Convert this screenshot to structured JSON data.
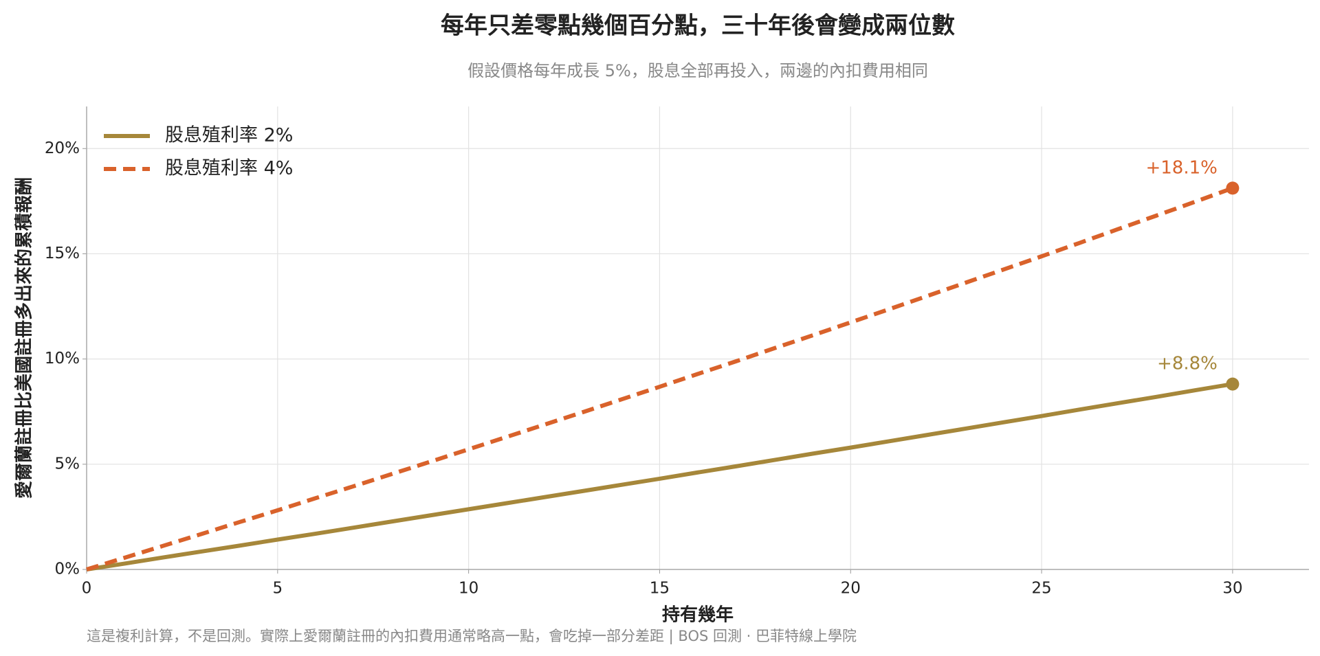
{
  "chart_data": {
    "type": "line",
    "title": "每年只差零點幾個百分點，三十年後會變成兩位數",
    "subtitle": "假設價格每年成長 5%，股息全部再投入，兩邊的內扣費用相同",
    "x_label": "持有幾年",
    "y_label": "愛爾蘭註冊比美國註冊多出來的累積報酬",
    "footer": "這是複利計算，不是回測。實際上愛爾蘭註冊的內扣費用通常略高一點，會吃掉一部分差距 | BOS 回測 · 巴菲特線上學院",
    "x": [
      0,
      1,
      2,
      3,
      4,
      5,
      6,
      7,
      8,
      9,
      10,
      11,
      12,
      13,
      14,
      15,
      16,
      17,
      18,
      19,
      20,
      21,
      22,
      23,
      24,
      25,
      26,
      27,
      28,
      29,
      30
    ],
    "series": [
      {
        "name": "股息殖利率 2%",
        "color": "#a6873a",
        "dash": false,
        "values": [
          0,
          0.28,
          0.57,
          0.85,
          1.13,
          1.42,
          1.7,
          1.99,
          2.28,
          2.57,
          2.86,
          3.15,
          3.44,
          3.73,
          4.02,
          4.31,
          4.61,
          4.9,
          5.2,
          5.5,
          5.79,
          6.09,
          6.39,
          6.69,
          6.99,
          7.29,
          7.6,
          7.9,
          8.2,
          8.51,
          8.81
        ]
      },
      {
        "name": "股息殖利率 4%",
        "color": "#d9622b",
        "dash": true,
        "values": [
          0,
          0.56,
          1.12,
          1.68,
          2.25,
          2.81,
          3.39,
          3.96,
          4.54,
          5.12,
          5.71,
          6.3,
          6.89,
          7.48,
          8.08,
          8.68,
          9.29,
          9.89,
          10.51,
          11.12,
          11.74,
          12.36,
          12.99,
          13.62,
          14.25,
          14.88,
          15.52,
          16.17,
          16.81,
          17.46,
          18.12
        ]
      }
    ],
    "annotations": [
      {
        "text": "+18.1%",
        "x": 30,
        "y": 18.12,
        "color": "#d9622b"
      },
      {
        "text": "+8.8%",
        "x": 30,
        "y": 8.81,
        "color": "#a6873a"
      }
    ],
    "xlim": [
      0,
      32
    ],
    "ylim": [
      0,
      22
    ],
    "xticks": [
      0,
      5,
      10,
      15,
      20,
      25,
      30
    ],
    "yticks": [
      {
        "value": 0,
        "label": "0%"
      },
      {
        "value": 5,
        "label": "5%"
      },
      {
        "value": 10,
        "label": "10%"
      },
      {
        "value": 15,
        "label": "15%"
      },
      {
        "value": 20,
        "label": "20%"
      }
    ],
    "grid": true,
    "legend": "upper left"
  }
}
